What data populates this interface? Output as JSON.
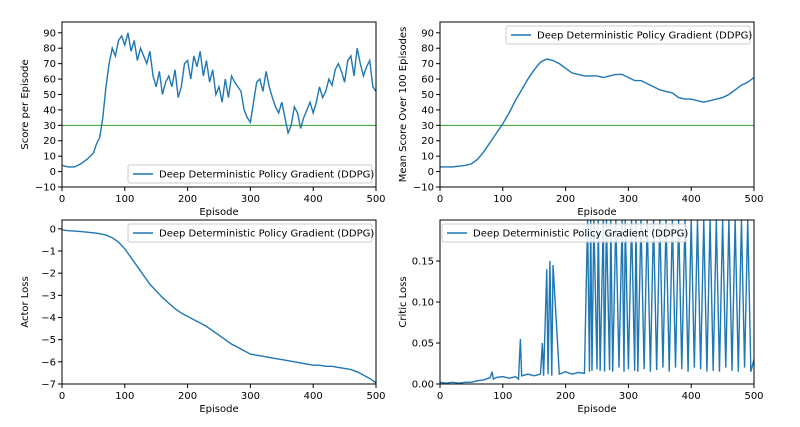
{
  "colors": {
    "series": "#1f77b4",
    "threshold": "#2ca02c",
    "axes": "#000000"
  },
  "chart_data": [
    {
      "type": "line",
      "xlabel": "Episode",
      "ylabel": "Score per Episode",
      "xlim": [
        0,
        500
      ],
      "ylim": [
        -10,
        97
      ],
      "xticks": [
        "0",
        "100",
        "200",
        "300",
        "400",
        "500"
      ],
      "yticks": [
        "−10",
        "0",
        "10",
        "20",
        "30",
        "40",
        "50",
        "60",
        "70",
        "80",
        "90"
      ],
      "legend": {
        "placement": "lower-right",
        "entries": [
          "Deep Deterministic Policy Gradient (DDPG)"
        ]
      },
      "hline": 30,
      "series": [
        {
          "name": "Deep Deterministic Policy Gradient (DDPG)",
          "x": [
            0,
            10,
            20,
            30,
            40,
            50,
            55,
            60,
            65,
            70,
            75,
            80,
            85,
            90,
            95,
            100,
            105,
            110,
            115,
            120,
            125,
            130,
            135,
            140,
            145,
            150,
            155,
            160,
            165,
            170,
            175,
            180,
            185,
            190,
            195,
            200,
            205,
            210,
            215,
            220,
            225,
            230,
            235,
            240,
            245,
            250,
            255,
            260,
            265,
            270,
            275,
            280,
            285,
            290,
            295,
            300,
            305,
            310,
            315,
            320,
            325,
            330,
            335,
            340,
            345,
            350,
            355,
            360,
            365,
            370,
            375,
            380,
            385,
            390,
            395,
            400,
            405,
            410,
            415,
            420,
            425,
            430,
            435,
            440,
            445,
            450,
            455,
            460,
            465,
            470,
            475,
            480,
            485,
            490,
            495,
            500
          ],
          "y": [
            4,
            3,
            3,
            5,
            8,
            12,
            18,
            22,
            35,
            55,
            70,
            80,
            75,
            85,
            88,
            82,
            90,
            78,
            85,
            72,
            80,
            75,
            70,
            78,
            62,
            55,
            65,
            50,
            58,
            62,
            55,
            66,
            48,
            55,
            70,
            72,
            60,
            75,
            68,
            78,
            62,
            72,
            58,
            66,
            50,
            55,
            45,
            60,
            48,
            62,
            58,
            55,
            52,
            40,
            35,
            32,
            45,
            58,
            60,
            52,
            65,
            55,
            48,
            42,
            38,
            45,
            35,
            25,
            30,
            42,
            38,
            28,
            35,
            40,
            45,
            38,
            45,
            55,
            48,
            52,
            60,
            56,
            66,
            70,
            65,
            58,
            72,
            75,
            62,
            80,
            70,
            62,
            68,
            72,
            55,
            52
          ]
        }
      ]
    },
    {
      "type": "line",
      "xlabel": "Episode",
      "ylabel": "Mean Score Over 100 Episodes",
      "xlim": [
        0,
        500
      ],
      "ylim": [
        -10,
        97
      ],
      "xticks": [
        "0",
        "100",
        "200",
        "300",
        "400",
        "500"
      ],
      "yticks": [
        "−10",
        "0",
        "10",
        "20",
        "30",
        "40",
        "50",
        "60",
        "70",
        "80",
        "90"
      ],
      "legend": {
        "placement": "upper-right",
        "entries": [
          "Deep Deterministic Policy Gradient (DDPG)"
        ]
      },
      "hline": 30,
      "series": [
        {
          "name": "Deep Deterministic Policy Gradient (DDPG)",
          "x": [
            0,
            20,
            40,
            50,
            60,
            70,
            80,
            90,
            100,
            110,
            120,
            130,
            140,
            150,
            160,
            170,
            180,
            190,
            200,
            210,
            220,
            230,
            240,
            250,
            260,
            270,
            280,
            290,
            300,
            310,
            320,
            330,
            340,
            350,
            360,
            370,
            380,
            390,
            400,
            410,
            420,
            430,
            440,
            450,
            460,
            470,
            480,
            490,
            500
          ],
          "y": [
            3,
            3,
            4,
            5,
            8,
            13,
            19,
            25,
            31,
            38,
            46,
            53,
            60,
            66,
            71,
            73,
            72,
            70,
            67,
            64,
            63,
            62,
            62,
            62,
            61,
            62,
            63,
            63,
            61,
            59,
            59,
            57,
            55,
            53,
            52,
            51,
            48,
            47,
            47,
            46,
            45,
            46,
            47,
            48,
            50,
            53,
            56,
            58,
            61
          ]
        }
      ]
    },
    {
      "type": "line",
      "xlabel": "Episode",
      "ylabel": "Actor Loss",
      "xlim": [
        0,
        500
      ],
      "ylim": [
        -7,
        0.4
      ],
      "xticks": [
        "0",
        "100",
        "200",
        "300",
        "400",
        "500"
      ],
      "yticks": [
        "−7",
        "−6",
        "−5",
        "−4",
        "−3",
        "−2",
        "−1",
        "0"
      ],
      "legend": {
        "placement": "upper-right",
        "entries": [
          "Deep Deterministic Policy Gradient (DDPG)"
        ]
      },
      "series": [
        {
          "name": "Deep Deterministic Policy Gradient (DDPG)",
          "x": [
            0,
            10,
            20,
            30,
            40,
            50,
            60,
            70,
            80,
            90,
            100,
            110,
            120,
            130,
            140,
            150,
            160,
            170,
            180,
            190,
            200,
            210,
            220,
            230,
            240,
            250,
            260,
            270,
            280,
            290,
            300,
            310,
            320,
            330,
            340,
            350,
            360,
            370,
            380,
            390,
            400,
            410,
            420,
            430,
            440,
            450,
            460,
            470,
            480,
            490,
            500
          ],
          "y": [
            -0.05,
            -0.08,
            -0.1,
            -0.12,
            -0.15,
            -0.18,
            -0.22,
            -0.28,
            -0.4,
            -0.6,
            -0.9,
            -1.3,
            -1.7,
            -2.1,
            -2.5,
            -2.8,
            -3.1,
            -3.35,
            -3.6,
            -3.8,
            -3.95,
            -4.1,
            -4.25,
            -4.4,
            -4.6,
            -4.8,
            -5.0,
            -5.2,
            -5.35,
            -5.5,
            -5.65,
            -5.7,
            -5.75,
            -5.8,
            -5.85,
            -5.9,
            -5.95,
            -6.0,
            -6.05,
            -6.1,
            -6.15,
            -6.15,
            -6.2,
            -6.2,
            -6.25,
            -6.3,
            -6.35,
            -6.45,
            -6.6,
            -6.75,
            -6.95
          ]
        }
      ]
    },
    {
      "type": "line",
      "xlabel": "Episode",
      "ylabel": "Critic Loss",
      "xlim": [
        0,
        500
      ],
      "ylim": [
        0,
        0.2
      ],
      "xticks": [
        "0",
        "100",
        "200",
        "300",
        "400",
        "500"
      ],
      "yticks": [
        "0.00",
        "0.05",
        "0.10",
        "0.15"
      ],
      "legend": {
        "placement": "upper-right",
        "entries": [
          "Deep Deterministic Policy Gradient (DDPG)"
        ]
      },
      "series": [
        {
          "name": "Deep Deterministic Policy Gradient (DDPG)",
          "x": [
            0,
            10,
            20,
            30,
            40,
            50,
            60,
            70,
            80,
            83,
            85,
            90,
            100,
            110,
            120,
            125,
            128,
            130,
            140,
            150,
            160,
            163,
            165,
            170,
            172,
            175,
            178,
            180,
            190,
            200,
            210,
            220,
            230,
            235,
            238,
            240,
            242,
            245,
            250,
            252,
            255,
            260,
            262,
            265,
            270,
            272,
            275,
            280,
            285,
            290,
            293,
            295,
            300,
            305,
            310,
            312,
            315,
            320,
            325,
            330,
            335,
            340,
            345,
            350,
            355,
            360,
            365,
            370,
            375,
            380,
            385,
            390,
            395,
            400,
            405,
            410,
            415,
            420,
            425,
            430,
            435,
            440,
            445,
            450,
            455,
            460,
            465,
            470,
            475,
            480,
            485,
            490,
            495,
            500
          ],
          "y": [
            0.002,
            0.001,
            0.002,
            0.001,
            0.002,
            0.002,
            0.004,
            0.005,
            0.008,
            0.015,
            0.006,
            0.008,
            0.009,
            0.007,
            0.009,
            0.006,
            0.055,
            0.01,
            0.012,
            0.01,
            0.012,
            0.05,
            0.01,
            0.14,
            0.012,
            0.15,
            0.01,
            0.145,
            0.012,
            0.015,
            0.012,
            0.014,
            0.013,
            0.2,
            0.015,
            0.2,
            0.016,
            0.2,
            0.018,
            0.2,
            0.016,
            0.2,
            0.015,
            0.2,
            0.017,
            0.2,
            0.015,
            0.2,
            0.02,
            0.2,
            0.015,
            0.2,
            0.018,
            0.2,
            0.016,
            0.2,
            0.015,
            0.2,
            0.018,
            0.2,
            0.015,
            0.2,
            0.017,
            0.2,
            0.02,
            0.2,
            0.015,
            0.2,
            0.02,
            0.2,
            0.018,
            0.2,
            0.015,
            0.2,
            0.02,
            0.2,
            0.018,
            0.2,
            0.015,
            0.2,
            0.016,
            0.2,
            0.015,
            0.2,
            0.02,
            0.2,
            0.016,
            0.2,
            0.015,
            0.2,
            0.02,
            0.2,
            0.015,
            0.03
          ]
        }
      ]
    }
  ]
}
